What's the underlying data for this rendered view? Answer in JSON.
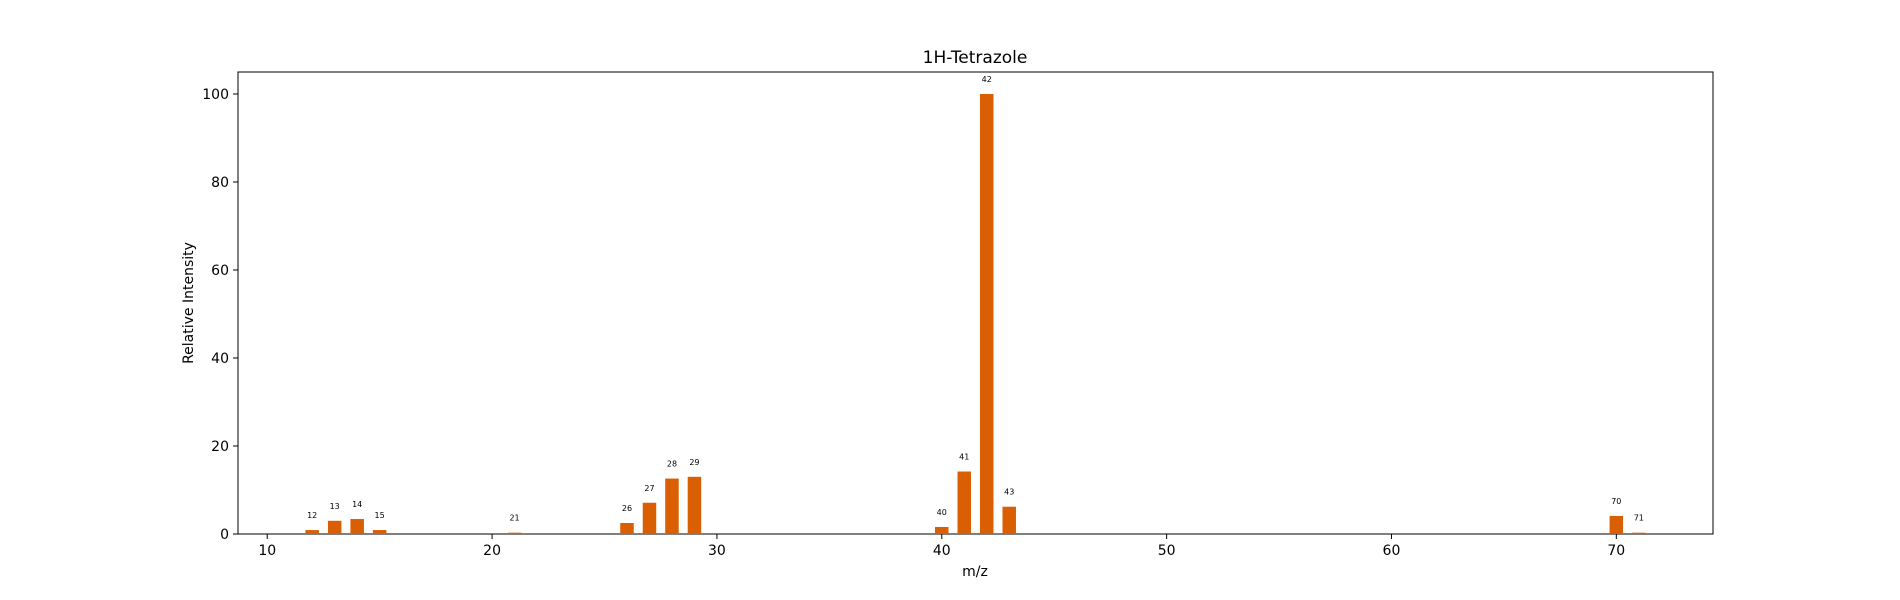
{
  "chart_data": {
    "type": "bar",
    "title": "1H-Tetrazole",
    "xlabel": "m/z",
    "ylabel": "Relative Intensity",
    "xlim": [
      8.7,
      74.3
    ],
    "ylim": [
      0,
      105
    ],
    "xticks": [
      10,
      20,
      30,
      40,
      50,
      60,
      70
    ],
    "yticks": [
      0,
      20,
      40,
      60,
      80,
      100
    ],
    "bar_color": "#d95f02",
    "grid": false,
    "x": [
      12,
      13,
      14,
      15,
      21,
      26,
      27,
      28,
      29,
      40,
      41,
      42,
      43,
      70,
      71
    ],
    "values": [
      0.9,
      3.0,
      3.4,
      0.9,
      0.3,
      2.5,
      7.1,
      12.6,
      13.0,
      1.6,
      14.2,
      100,
      6.2,
      4.1,
      0.3
    ],
    "labels": [
      "12",
      "13",
      "14",
      "15",
      "21",
      "26",
      "27",
      "28",
      "29",
      "40",
      "41",
      "42",
      "43",
      "70",
      "71"
    ]
  }
}
